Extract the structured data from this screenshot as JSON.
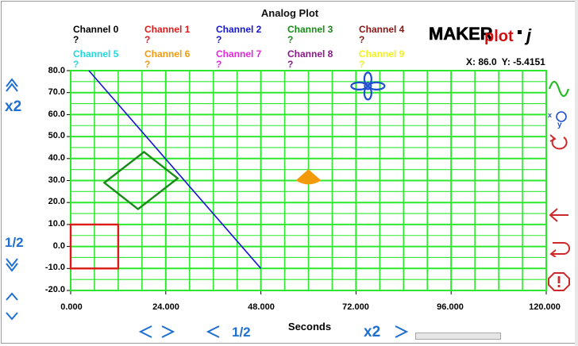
{
  "plot": {
    "title": "Analog Plot",
    "x_axis_label": "Seconds",
    "coords": {
      "x": "X: 86.0",
      "y": "Y: -5.4151"
    }
  },
  "logo": {
    "text_maker": "MAKER",
    "text_plot": "plot",
    "text_j": "j"
  },
  "channels": [
    {
      "name": "Channel 0",
      "value": "?",
      "color": "#000000"
    },
    {
      "name": "Channel 1",
      "value": "?",
      "color": "#e01818"
    },
    {
      "name": "Channel 2",
      "value": "?",
      "color": "#1515d6"
    },
    {
      "name": "Channel 3",
      "value": "?",
      "color": "#178a17"
    },
    {
      "name": "Channel 4",
      "value": "?",
      "color": "#8b1414"
    },
    {
      "name": "Channel 5",
      "value": "?",
      "color": "#1fd8e0"
    },
    {
      "name": "Channel 6",
      "value": "?",
      "color": "#f39a0c"
    },
    {
      "name": "Channel 7",
      "value": "?",
      "color": "#e526e0"
    },
    {
      "name": "Channel 8",
      "value": "?",
      "color": "#8a1a8a"
    },
    {
      "name": "Channel 9",
      "value": "?",
      "color": "#f0f020"
    }
  ],
  "controls": {
    "y_zoom_in": "x2",
    "y_zoom_out": "1/2",
    "x_zoom_out": "1/2",
    "x_zoom_in": "x2"
  },
  "chart_data": {
    "type": "line",
    "x_label": "Seconds",
    "xlim": [
      0,
      120
    ],
    "ylim": [
      -20,
      80
    ],
    "x_ticks": [
      "0.000",
      "24.000",
      "48.000",
      "72.000",
      "96.000",
      "120.000"
    ],
    "y_ticks": [
      "80.0",
      "70.0",
      "60.0",
      "50.0",
      "40.0",
      "30.0",
      "20.0",
      "10.0",
      "0.0",
      "-10.0",
      "-20.0"
    ],
    "grid": true,
    "series": [
      {
        "color": "#1515d6",
        "points": [
          [
            4.6,
            80
          ],
          [
            48,
            -10
          ]
        ]
      }
    ],
    "shapes": [
      {
        "kind": "rectangle",
        "color": "#e01818",
        "points": [
          [
            0,
            10
          ],
          [
            12,
            10
          ],
          [
            12,
            -10
          ],
          [
            0,
            -10
          ]
        ]
      },
      {
        "kind": "diamond",
        "color": "#178a17",
        "points": [
          [
            18.5,
            43
          ],
          [
            27,
            31
          ],
          [
            17,
            17
          ],
          [
            8.5,
            29
          ]
        ]
      },
      {
        "kind": "sector",
        "color": "#f39a0c",
        "center": [
          60,
          31.5
        ]
      },
      {
        "kind": "target",
        "color": "#1f4fd1",
        "center": [
          75,
          73
        ]
      }
    ],
    "cursor": {
      "x": 86.0,
      "y": -5.4151
    }
  },
  "styles": {
    "grid_color": "#2ee82e",
    "accent": "#1f6fd1"
  }
}
